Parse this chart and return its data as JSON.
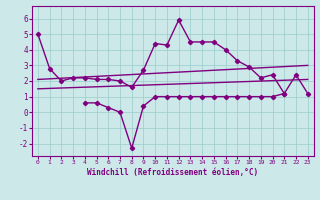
{
  "background_color": "#cce8e8",
  "line_color": "#800080",
  "grid_color": "#99cccc",
  "xlabel": "Windchill (Refroidissement éolien,°C)",
  "xlim": [
    -0.5,
    23.5
  ],
  "ylim": [
    -2.8,
    6.8
  ],
  "xticks": [
    0,
    1,
    2,
    3,
    4,
    5,
    6,
    7,
    8,
    9,
    10,
    11,
    12,
    13,
    14,
    15,
    16,
    17,
    18,
    19,
    20,
    21,
    22,
    23
  ],
  "yticks": [
    -2,
    -1,
    0,
    1,
    2,
    3,
    4,
    5,
    6
  ],
  "series_main_x": [
    0,
    1,
    2,
    3,
    4,
    5,
    6,
    7,
    8,
    9,
    10,
    11,
    12,
    13,
    14,
    15,
    16,
    17,
    18,
    19,
    20,
    21,
    22,
    23
  ],
  "series_main_y": [
    5.0,
    2.8,
    2.0,
    2.2,
    2.2,
    2.1,
    2.1,
    2.0,
    1.6,
    2.7,
    4.4,
    4.3,
    5.9,
    4.5,
    4.5,
    4.5,
    4.0,
    3.3,
    2.9,
    2.2,
    2.4,
    1.2,
    2.4,
    1.2
  ],
  "series_low_x": [
    4,
    5,
    6,
    7,
    8,
    9,
    10,
    11,
    12,
    13,
    14,
    15,
    16,
    17,
    18,
    19,
    20,
    21
  ],
  "series_low_y": [
    0.6,
    0.6,
    0.3,
    0.0,
    -2.3,
    0.4,
    1.0,
    1.0,
    1.0,
    1.0,
    1.0,
    1.0,
    1.0,
    1.0,
    1.0,
    1.0,
    1.0,
    1.2
  ],
  "trend1_x": [
    0,
    23
  ],
  "trend1_y": [
    2.1,
    3.0
  ],
  "trend2_x": [
    0,
    23
  ],
  "trend2_y": [
    1.5,
    2.1
  ]
}
